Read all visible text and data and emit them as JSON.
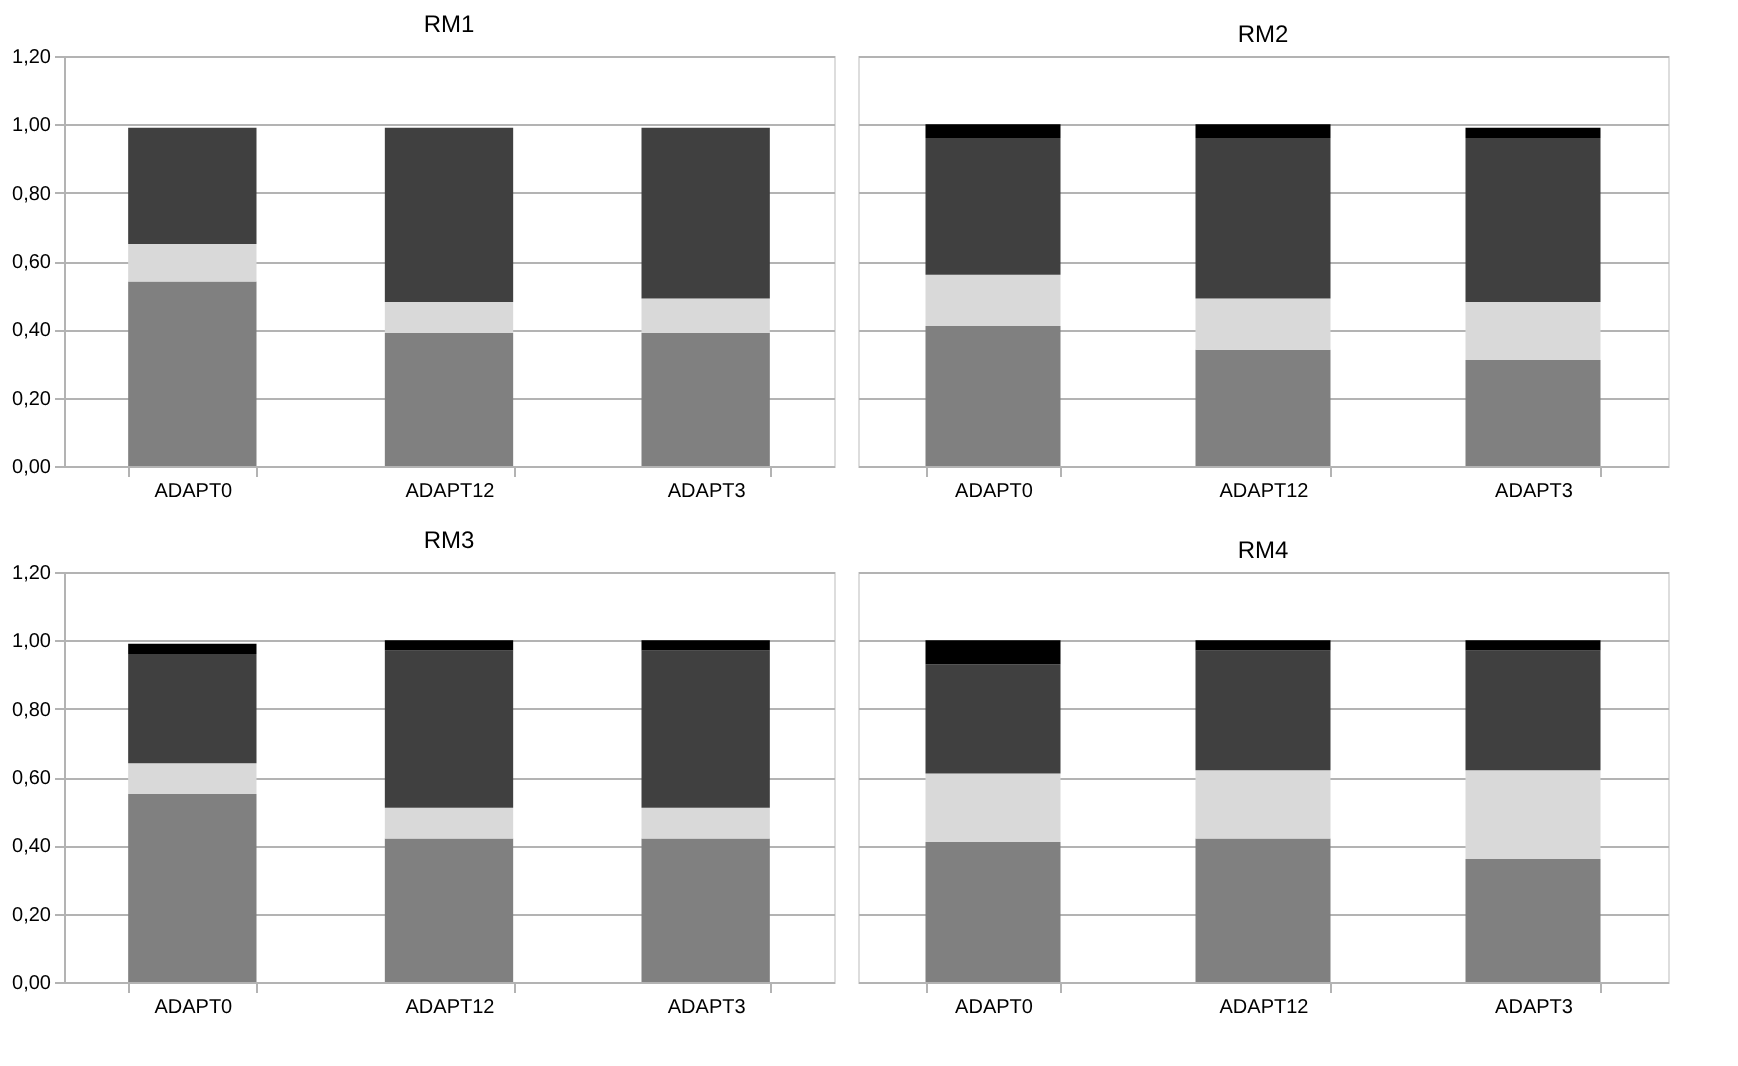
{
  "chart_data": [
    {
      "type": "bar",
      "title": "RM1",
      "stacked": true,
      "categories": [
        "ADAPT0",
        "ADAPT12",
        "ADAPT3"
      ],
      "ylim": [
        0,
        1.2
      ],
      "yticks": [
        {
          "value": 0,
          "label": "0,00"
        },
        {
          "value": 0.2,
          "label": "0,20"
        },
        {
          "value": 0.4,
          "label": "0,40"
        },
        {
          "value": 0.6,
          "label": "0,60"
        },
        {
          "value": 0.8,
          "label": "0,80"
        },
        {
          "value": 1,
          "label": "1,00"
        },
        {
          "value": 1.2,
          "label": "1,20"
        }
      ],
      "grid": "y",
      "legend": false,
      "series": [
        {
          "color": "#808080",
          "values": [
            0.54,
            0.39,
            0.39
          ]
        },
        {
          "color": "#d9d9d9",
          "values": [
            0.11,
            0.09,
            0.1
          ]
        },
        {
          "color": "#404040",
          "values": [
            0.34,
            0.51,
            0.5
          ]
        }
      ]
    },
    {
      "type": "bar",
      "title": "RM2",
      "stacked": true,
      "categories": [
        "ADAPT0",
        "ADAPT12",
        "ADAPT3"
      ],
      "ylim": [
        0,
        1.2
      ],
      "yticks": [
        0,
        0.2,
        0.4,
        0.6,
        0.8,
        1,
        1.2
      ],
      "grid": "y",
      "legend": false,
      "tick_labels": "x",
      "series": [
        {
          "color": "#808080",
          "values": [
            0.41,
            0.34,
            0.31
          ]
        },
        {
          "color": "#d9d9d9",
          "values": [
            0.15,
            0.15,
            0.17
          ]
        },
        {
          "color": "#404040",
          "values": [
            0.4,
            0.47,
            0.48
          ]
        },
        {
          "color": "#000000",
          "values": [
            0.04,
            0.04,
            0.03
          ]
        }
      ]
    },
    {
      "type": "bar",
      "title": "RM3",
      "stacked": true,
      "categories": [
        "ADAPT0",
        "ADAPT12",
        "ADAPT3"
      ],
      "ylim": [
        0,
        1.2
      ],
      "yticks": [
        {
          "value": 0,
          "label": "0,00"
        },
        {
          "value": 0.2,
          "label": "0,20"
        },
        {
          "value": 0.4,
          "label": "0,40"
        },
        {
          "value": 0.6,
          "label": "0,60"
        },
        {
          "value": 0.8,
          "label": "0,80"
        },
        {
          "value": 1,
          "label": "1,00"
        },
        {
          "value": 1.2,
          "label": "1,20"
        }
      ],
      "grid": "y",
      "legend": false,
      "series": [
        {
          "color": "#808080",
          "values": [
            0.55,
            0.42,
            0.42
          ]
        },
        {
          "color": "#d9d9d9",
          "values": [
            0.09,
            0.09,
            0.09
          ]
        },
        {
          "color": "#404040",
          "values": [
            0.32,
            0.46,
            0.46
          ]
        },
        {
          "color": "#000000",
          "values": [
            0.03,
            0.03,
            0.03
          ]
        }
      ]
    },
    {
      "type": "bar",
      "title": "RM4",
      "stacked": true,
      "categories": [
        "ADAPT0",
        "ADAPT12",
        "ADAPT3"
      ],
      "ylim": [
        0,
        1.2
      ],
      "yticks": [
        0,
        0.2,
        0.4,
        0.6,
        0.8,
        1,
        1.2
      ],
      "grid": "y",
      "legend": false,
      "tick_labels": "x",
      "series": [
        {
          "color": "#808080",
          "values": [
            0.41,
            0.42,
            0.36
          ]
        },
        {
          "color": "#d9d9d9",
          "values": [
            0.2,
            0.2,
            0.26
          ]
        },
        {
          "color": "#404040",
          "values": [
            0.32,
            0.35,
            0.35
          ]
        },
        {
          "color": "#000000",
          "values": [
            0.07,
            0.03,
            0.03
          ]
        }
      ]
    }
  ]
}
